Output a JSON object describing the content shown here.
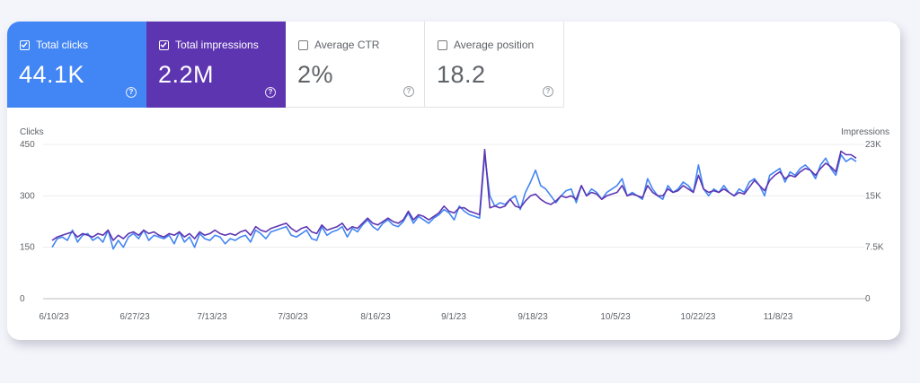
{
  "metrics": [
    {
      "label": "Total clicks",
      "value": "44.1K",
      "checked": true,
      "color": "#4285f4"
    },
    {
      "label": "Total impressions",
      "value": "2.2M",
      "checked": true,
      "color": "#5e35b1"
    },
    {
      "label": "Average CTR",
      "value": "2%",
      "checked": false
    },
    {
      "label": "Average position",
      "value": "18.2",
      "checked": false
    }
  ],
  "help_glyph": "?",
  "chart_data": {
    "type": "line",
    "left_axis_label": "Clicks",
    "right_axis_label": "Impressions",
    "left_ticks": [
      "450",
      "300",
      "150",
      "0"
    ],
    "right_ticks": [
      "23K",
      "15K",
      "7.5K",
      "0"
    ],
    "left_ylim": [
      0,
      450
    ],
    "right_ylim": [
      0,
      23000
    ],
    "x_tick_labels": [
      "6/10/23",
      "6/27/23",
      "7/13/23",
      "7/30/23",
      "8/16/23",
      "9/1/23",
      "9/18/23",
      "10/5/23",
      "10/22/23",
      "11/8/23"
    ],
    "grid": true,
    "series": [
      {
        "name": "Total clicks",
        "color": "#4285f4",
        "axis": "left",
        "values": [
          150,
          175,
          180,
          170,
          200,
          165,
          185,
          190,
          170,
          180,
          165,
          200,
          145,
          170,
          150,
          180,
          190,
          175,
          200,
          170,
          185,
          180,
          175,
          185,
          160,
          195,
          165,
          180,
          150,
          190,
          175,
          170,
          185,
          180,
          160,
          175,
          170,
          180,
          185,
          165,
          200,
          190,
          175,
          195,
          200,
          205,
          210,
          185,
          180,
          190,
          200,
          175,
          170,
          210,
          185,
          195,
          200,
          210,
          180,
          205,
          195,
          215,
          230,
          210,
          200,
          220,
          230,
          215,
          210,
          225,
          250,
          220,
          240,
          230,
          220,
          235,
          245,
          260,
          250,
          230,
          270,
          255,
          245,
          240,
          235,
          420,
          300,
          270,
          280,
          275,
          290,
          300,
          260,
          310,
          340,
          375,
          330,
          320,
          300,
          280,
          300,
          315,
          320,
          280,
          330,
          300,
          320,
          310,
          290,
          310,
          320,
          330,
          350,
          300,
          310,
          300,
          290,
          350,
          320,
          300,
          290,
          330,
          310,
          320,
          340,
          330,
          310,
          390,
          320,
          300,
          320,
          310,
          330,
          310,
          300,
          320,
          310,
          340,
          350,
          330,
          300,
          360,
          370,
          380,
          340,
          370,
          360,
          380,
          390,
          375,
          350,
          390,
          410,
          380,
          360,
          420,
          400,
          410,
          400
        ]
      },
      {
        "name": "Total impressions",
        "color": "#5e35b1",
        "axis": "left",
        "values": [
          170,
          180,
          185,
          190,
          195,
          180,
          190,
          185,
          180,
          190,
          185,
          200,
          170,
          185,
          175,
          190,
          195,
          185,
          200,
          190,
          195,
          185,
          180,
          190,
          185,
          195,
          180,
          190,
          175,
          195,
          185,
          190,
          200,
          190,
          185,
          190,
          185,
          195,
          200,
          185,
          210,
          200,
          195,
          205,
          210,
          215,
          220,
          205,
          195,
          205,
          210,
          195,
          190,
          215,
          200,
          205,
          210,
          220,
          200,
          210,
          205,
          220,
          235,
          220,
          215,
          225,
          235,
          225,
          220,
          230,
          255,
          230,
          245,
          240,
          230,
          240,
          250,
          270,
          255,
          250,
          265,
          265,
          255,
          250,
          245,
          435,
          265,
          270,
          265,
          270,
          290,
          270,
          265,
          285,
          300,
          305,
          290,
          280,
          275,
          285,
          300,
          295,
          300,
          290,
          330,
          300,
          310,
          305,
          290,
          300,
          305,
          310,
          330,
          300,
          305,
          300,
          295,
          330,
          310,
          300,
          300,
          320,
          310,
          315,
          330,
          320,
          310,
          360,
          320,
          310,
          315,
          310,
          320,
          310,
          300,
          310,
          305,
          325,
          345,
          330,
          315,
          345,
          360,
          370,
          350,
          360,
          355,
          370,
          380,
          375,
          360,
          380,
          395,
          385,
          370,
          430,
          420,
          420,
          410
        ]
      }
    ]
  }
}
